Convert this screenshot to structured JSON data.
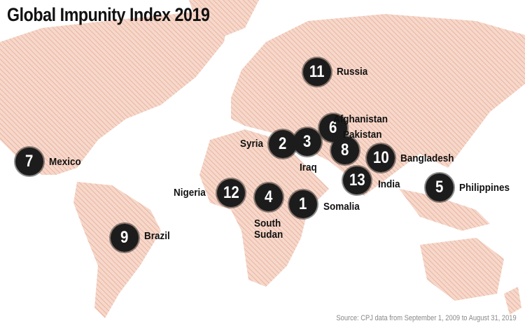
{
  "title": "Global Impunity Index 2019",
  "source": "Source: CPJ data from September 1, 2009 to August 31, 2019",
  "colors": {
    "land": "#f2c9b8",
    "land_dark": "#e8a893",
    "marker": "#1c1c1c",
    "text": "#111111"
  },
  "countries": [
    {
      "rank": "1",
      "name": "Somalia"
    },
    {
      "rank": "2",
      "name": "Syria"
    },
    {
      "rank": "3",
      "name": "Iraq"
    },
    {
      "rank": "4",
      "name": "South Sudan"
    },
    {
      "rank": "5",
      "name": "Philippines"
    },
    {
      "rank": "6",
      "name": "Afghanistan"
    },
    {
      "rank": "7",
      "name": "Mexico"
    },
    {
      "rank": "8",
      "name": "Pakistan"
    },
    {
      "rank": "9",
      "name": "Brazil"
    },
    {
      "rank": "10",
      "name": "Bangladesh"
    },
    {
      "rank": "11",
      "name": "Russia"
    },
    {
      "rank": "12",
      "name": "Nigeria"
    },
    {
      "rank": "13",
      "name": "India"
    }
  ]
}
